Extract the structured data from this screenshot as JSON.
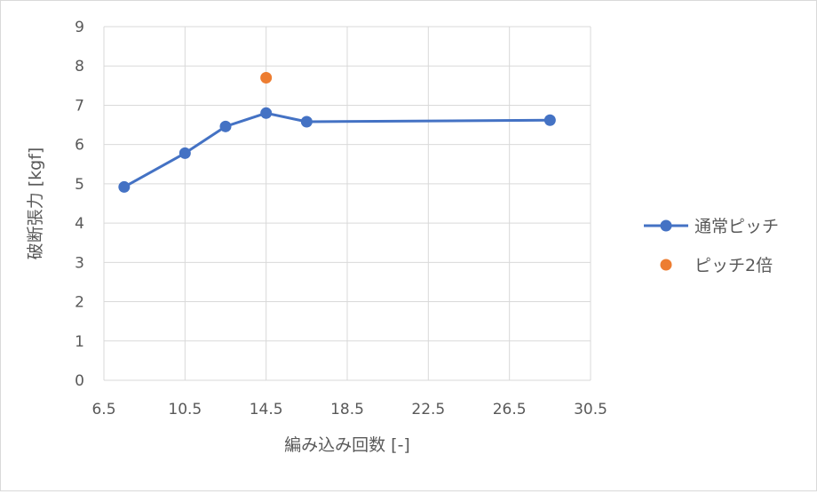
{
  "chart_data": {
    "type": "scatter",
    "title": "",
    "xlabel": "編み込み回数 [-]",
    "ylabel": "破断張力 [kgf]",
    "xlim": [
      6.5,
      30.5
    ],
    "ylim": [
      0,
      9
    ],
    "xticks": [
      6.5,
      10.5,
      14.5,
      18.5,
      22.5,
      26.5,
      30.5
    ],
    "xtick_labels": [
      "6.5",
      "10.5",
      "14.5",
      "18.5",
      "22.5",
      "26.5",
      "30.5"
    ],
    "yticks": [
      0,
      1,
      2,
      3,
      4,
      5,
      6,
      7,
      8,
      9
    ],
    "ytick_labels": [
      "0",
      "1",
      "2",
      "3",
      "4",
      "5",
      "6",
      "7",
      "8",
      "9"
    ],
    "grid": true,
    "legend_position": "right",
    "series": [
      {
        "name": "通常ピッチ",
        "color": "#4472C4",
        "lines": true,
        "points": [
          {
            "x": 7.5,
            "y": 4.92
          },
          {
            "x": 10.5,
            "y": 5.78
          },
          {
            "x": 12.5,
            "y": 6.46
          },
          {
            "x": 14.5,
            "y": 6.8
          },
          {
            "x": 16.5,
            "y": 6.58
          },
          {
            "x": 28.5,
            "y": 6.62
          }
        ]
      },
      {
        "name": "ピッチ2倍",
        "color": "#ED7D31",
        "lines": false,
        "points": [
          {
            "x": 14.5,
            "y": 7.7
          }
        ]
      }
    ]
  }
}
